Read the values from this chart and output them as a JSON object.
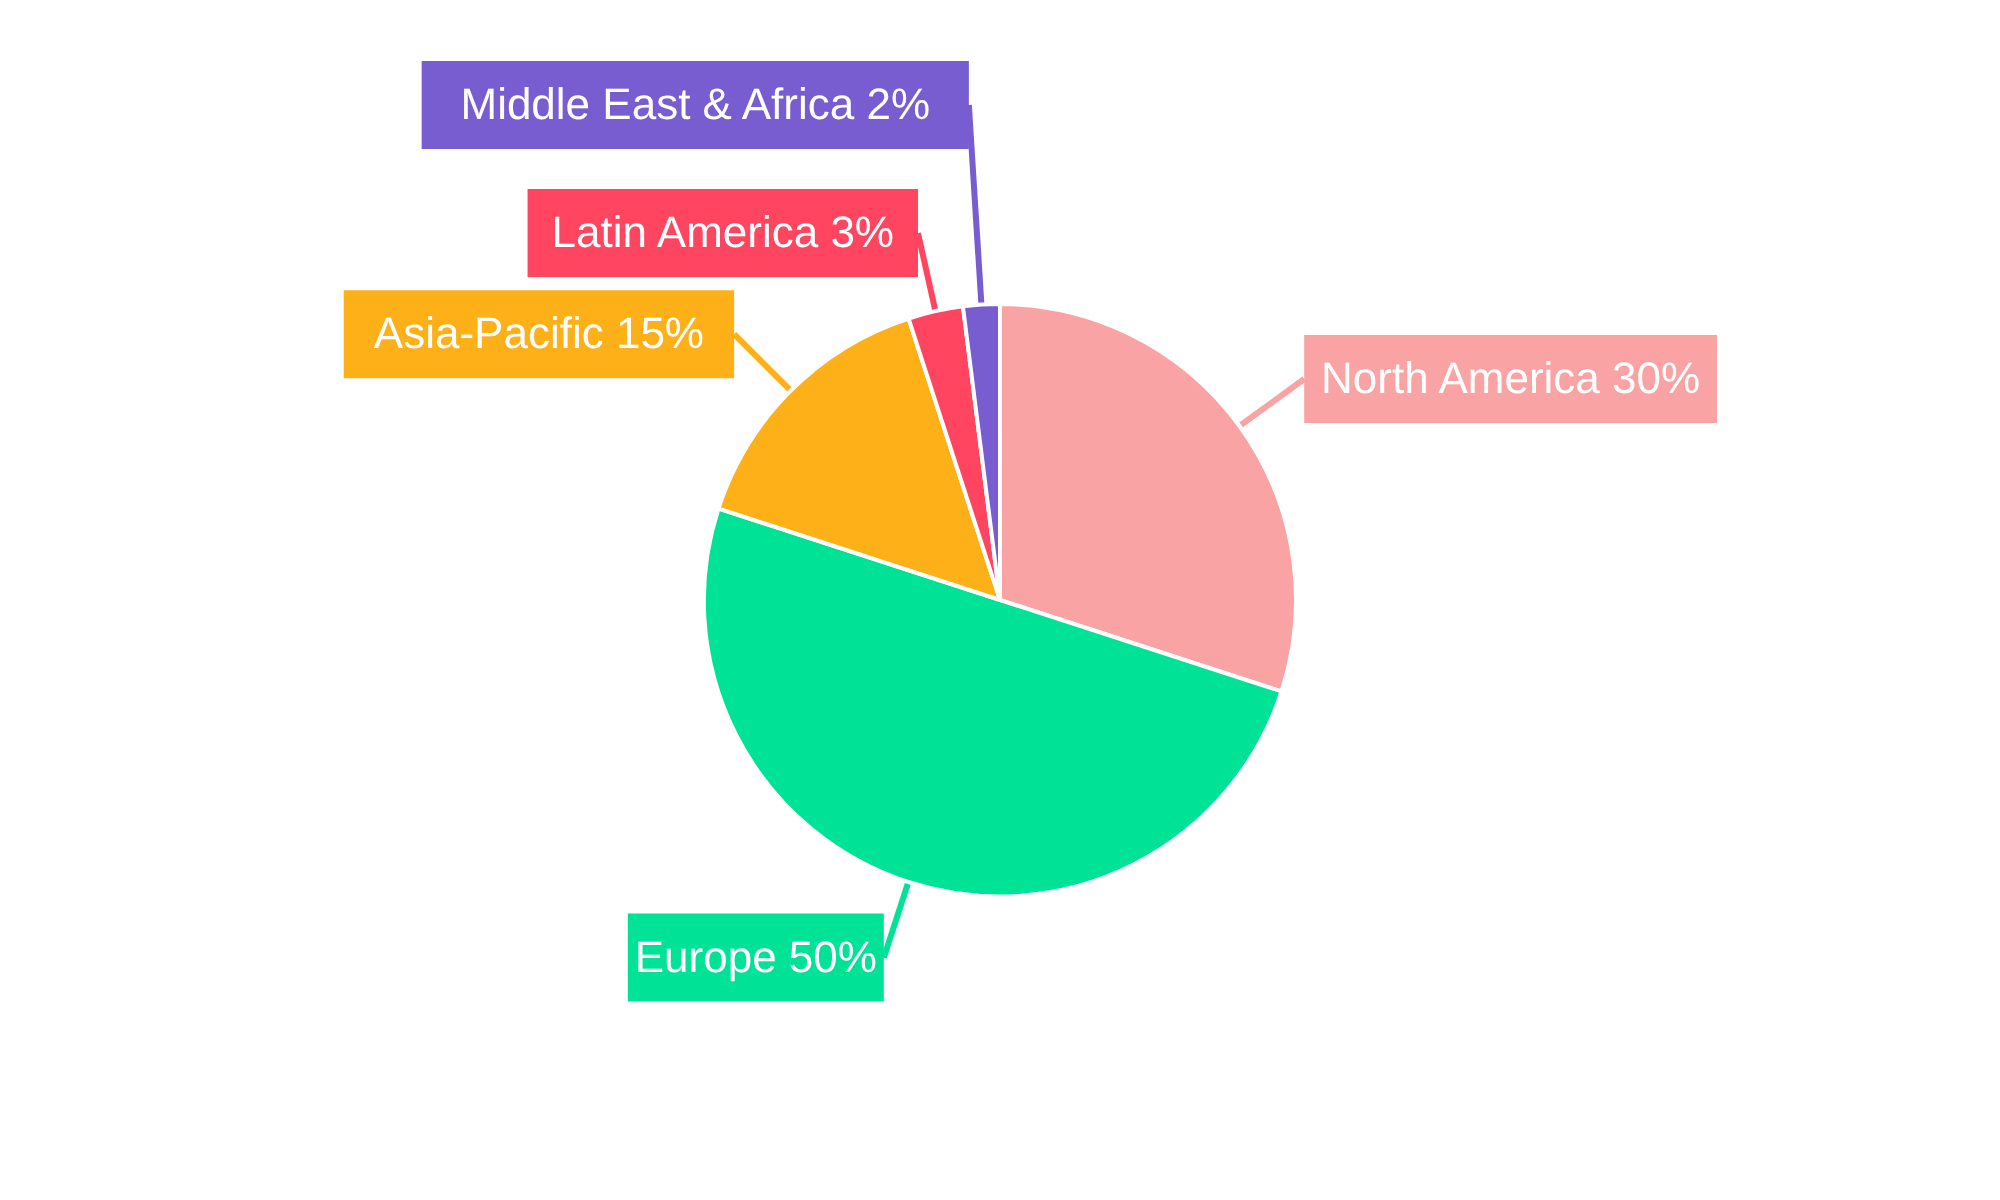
{
  "chart_data": {
    "type": "pie",
    "categories": [
      "North America",
      "Europe",
      "Asia-Pacific",
      "Latin America",
      "Middle East & Africa"
    ],
    "values": [
      30,
      50,
      15,
      3,
      2
    ],
    "value_labels": [
      "30%",
      "50%",
      "15%",
      "3%",
      "2%"
    ],
    "colors": [
      "#f9a3a4",
      "#00e396",
      "#feb019",
      "#ff4560",
      "#775dd0"
    ]
  }
}
